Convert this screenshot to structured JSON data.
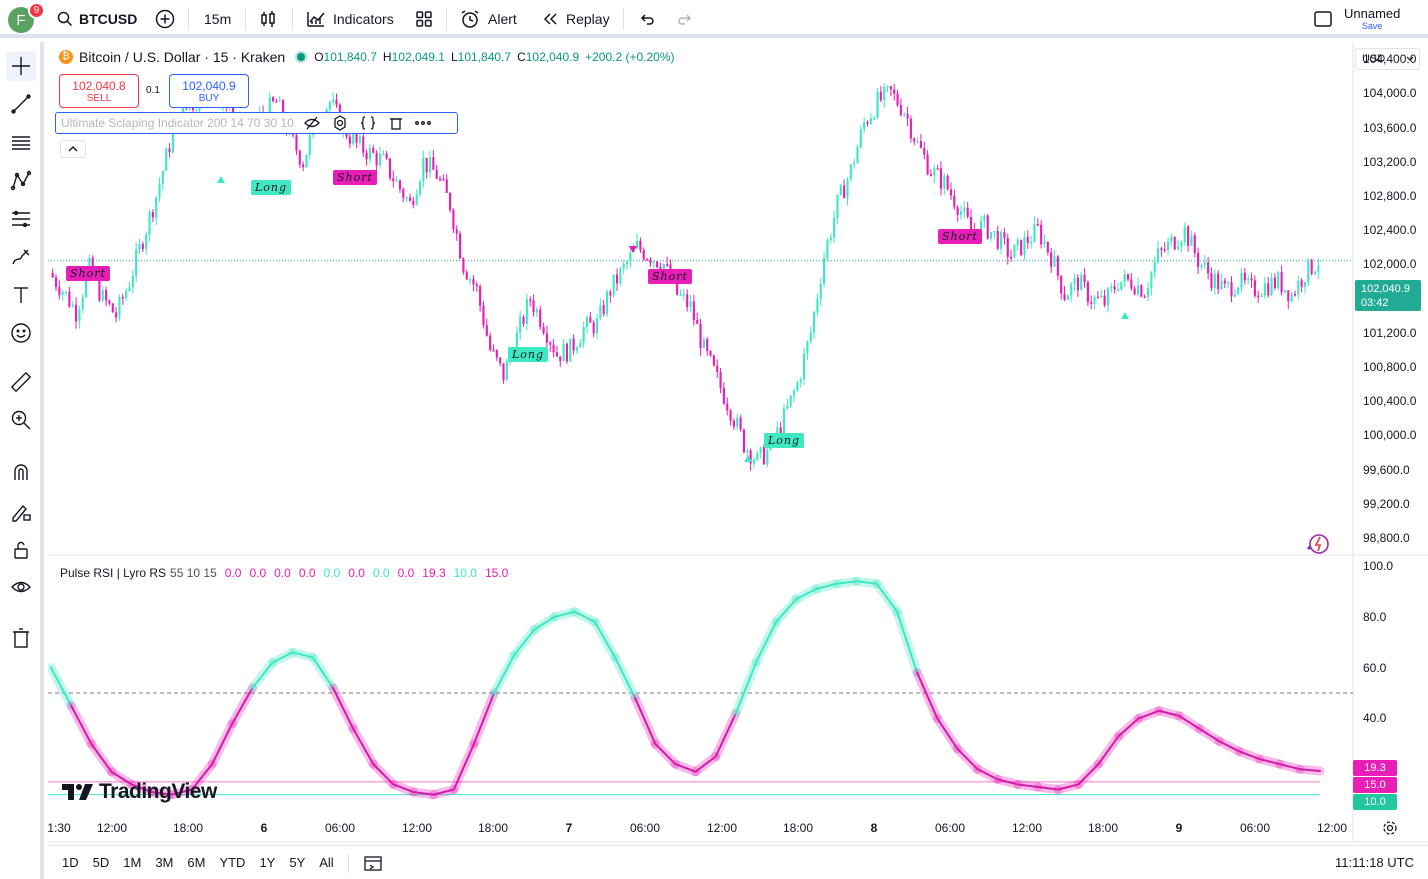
{
  "topbar": {
    "avatar_letter": "F",
    "notifications": "9",
    "symbol": "BTCUSD",
    "interval": "15m",
    "indicators": "Indicators",
    "alert": "Alert",
    "replay": "Replay",
    "layout_name": "Unnamed",
    "save": "Save"
  },
  "legend": {
    "title": "Bitcoin / U.S. Dollar · 15 · Kraken",
    "o_label": "O",
    "o": "101,840.7",
    "h_label": "H",
    "h": "102,049.1",
    "l_label": "L",
    "l": "101,840.7",
    "c_label": "C",
    "c": "102,040.9",
    "change": "+200.2 (+0.20%)"
  },
  "trade": {
    "sell_price": "102,040.8",
    "sell_label": "SELL",
    "spread": "0.1",
    "buy_price": "102,040.9",
    "buy_label": "BUY"
  },
  "indicator_main": {
    "name": "Ultimate Sclaping Indicator 200 14 70 30 10"
  },
  "indicator_rsi": {
    "name": "Pulse RSI | Lyro RS",
    "params": "55 10 15",
    "values": [
      {
        "v": "0.0",
        "color": "#e91eb7"
      },
      {
        "v": "0.0",
        "color": "#e91eb7"
      },
      {
        "v": "0.0",
        "color": "#e91eb7"
      },
      {
        "v": "0.0",
        "color": "#e91eb7"
      },
      {
        "v": "0.0",
        "color": "#3ee8c2"
      },
      {
        "v": "0.0",
        "color": "#e91eb7"
      },
      {
        "v": "0.0",
        "color": "#3ee8c2"
      },
      {
        "v": "0.0",
        "color": "#e91eb7"
      },
      {
        "v": "19.3",
        "color": "#e91eb7"
      },
      {
        "v": "10.0",
        "color": "#3ee8c2"
      },
      {
        "v": "15.0",
        "color": "#e91eb7"
      }
    ]
  },
  "price_axis": {
    "currency": "USD",
    "labels": [
      "104,400.0",
      "104,000.0",
      "103,600.0",
      "103,200.0",
      "102,800.0",
      "102,400.0",
      "102,000.0",
      "101,600.0",
      "101,200.0",
      "100,800.0",
      "100,400.0",
      "100,000.0",
      "99,600.0",
      "99,200.0",
      "98,800.0"
    ],
    "last_price": "102,040.9",
    "countdown": "03:42"
  },
  "rsi_axis": {
    "labels": [
      "100.0",
      "80.0",
      "60.0",
      "40.0"
    ],
    "tags": [
      {
        "v": "19.3",
        "color": "#e91eb7"
      },
      {
        "v": "15.0",
        "color": "#e91eb7"
      },
      {
        "v": "10.0",
        "color": "#22c7a0"
      }
    ]
  },
  "time_axis": [
    "1:30",
    "12:00",
    "18:00",
    "6",
    "06:00",
    "12:00",
    "18:00",
    "7",
    "06:00",
    "12:00",
    "18:00",
    "8",
    "06:00",
    "12:00",
    "18:00",
    "9",
    "06:00",
    "12:00"
  ],
  "signals": [
    "Short",
    "Long",
    "Short",
    "Short",
    "Long",
    "Long",
    "Short"
  ],
  "watermark": "TradingView",
  "bottombar": {
    "ranges": [
      "1D",
      "5D",
      "1M",
      "3M",
      "6M",
      "YTD",
      "1Y",
      "5Y",
      "All"
    ],
    "clock": "11:11:18 UTC"
  },
  "colors": {
    "bull": "#3ee8c2",
    "bear": "#e91eb7",
    "up_text": "#089981",
    "sell": "#f23645",
    "buy": "#2962ff"
  },
  "chart_data": {
    "type": "candlestick",
    "y_range": [
      98600,
      104600
    ],
    "price_line": 102040.9,
    "signals_x_fraction": [],
    "closes": [
      101900,
      101700,
      101450,
      101950,
      101600,
      101400,
      101800,
      102300,
      102800,
      103400,
      103800,
      103900,
      104100,
      103900,
      103700,
      103600,
      103750,
      103900,
      103500,
      103200,
      103700,
      103900,
      103600,
      103400,
      103300,
      103200,
      102950,
      102700,
      103200,
      103050,
      102700,
      102000,
      101700,
      101000,
      100700,
      101150,
      101600,
      101300,
      100950,
      101000,
      101250,
      101300,
      101700,
      101950,
      102200,
      102100,
      102000,
      101650,
      101500,
      101000,
      100650,
      100300,
      99900,
      99700,
      99850,
      100200,
      100600,
      101200,
      102100,
      102700,
      103100,
      103650,
      103900,
      104000,
      103800,
      103400,
      103100,
      102950,
      102700,
      102400,
      102450,
      102300,
      102100,
      102250,
      102400,
      102100,
      101650,
      101800,
      101600,
      101550,
      101800,
      101800,
      101700,
      102100,
      102250,
      102400,
      102050,
      101850,
      101700,
      101800,
      101700,
      101750,
      101800,
      101650,
      101900,
      102040
    ],
    "rsi": {
      "threshold": 50,
      "upper": 15,
      "lower": 10,
      "last": 19.3,
      "ylim": [
        0,
        100
      ],
      "values": [
        60,
        45,
        30,
        19,
        14,
        11,
        10,
        12,
        22,
        38,
        52,
        62,
        66,
        64,
        52,
        36,
        22,
        14,
        11,
        10,
        12,
        30,
        50,
        65,
        75,
        80,
        82,
        78,
        64,
        48,
        30,
        22,
        19,
        25,
        42,
        62,
        78,
        87,
        91,
        93,
        94,
        93,
        82,
        58,
        40,
        28,
        20,
        16,
        14,
        13,
        12,
        14,
        22,
        33,
        40,
        43,
        41,
        36,
        31,
        27,
        24,
        22,
        20,
        19.3
      ]
    }
  }
}
